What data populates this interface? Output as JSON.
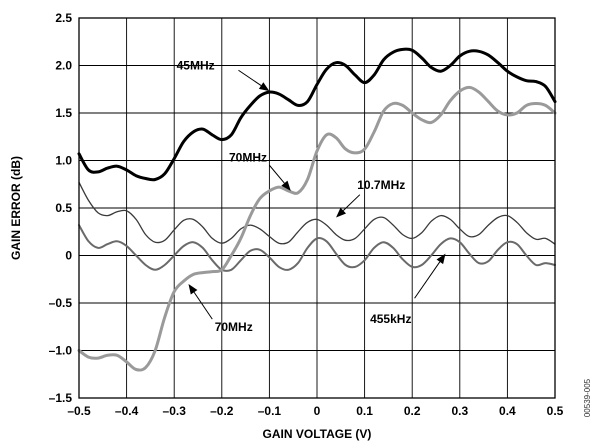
{
  "chart_data": {
    "type": "line",
    "xlabel": "GAIN VOLTAGE (V)",
    "ylabel": "GAIN ERROR (dB)",
    "xlim": [
      -0.5,
      0.5
    ],
    "ylim": [
      -1.5,
      2.5
    ],
    "xticks": [
      -0.5,
      -0.4,
      -0.3,
      -0.2,
      -0.1,
      0,
      0.1,
      0.2,
      0.3,
      0.4,
      0.5
    ],
    "yticks": [
      -1.5,
      -1.0,
      -0.5,
      0,
      0.5,
      1.0,
      1.5,
      2.0,
      2.5
    ],
    "xtick_labels": [
      "–0.5",
      "–0.4",
      "–0.3",
      "–0.2",
      "–0.1",
      "0",
      "0.1",
      "0.2",
      "0.3",
      "0.4",
      "0.5"
    ],
    "ytick_labels": [
      "–1.5",
      "–1.0",
      "–0.5",
      "0",
      "0.5",
      "1.0",
      "1.5",
      "2.0",
      "2.5"
    ],
    "grid": true,
    "figure_id": "00539-005",
    "series": [
      {
        "name": "45MHz",
        "color": "#000000",
        "width": 3,
        "points": [
          [
            -0.5,
            1.07
          ],
          [
            -0.48,
            0.9
          ],
          [
            -0.46,
            0.88
          ],
          [
            -0.44,
            0.92
          ],
          [
            -0.42,
            0.94
          ],
          [
            -0.4,
            0.9
          ],
          [
            -0.38,
            0.84
          ],
          [
            -0.36,
            0.81
          ],
          [
            -0.34,
            0.8
          ],
          [
            -0.32,
            0.86
          ],
          [
            -0.3,
            1.02
          ],
          [
            -0.28,
            1.2
          ],
          [
            -0.26,
            1.3
          ],
          [
            -0.24,
            1.33
          ],
          [
            -0.22,
            1.27
          ],
          [
            -0.2,
            1.22
          ],
          [
            -0.18,
            1.27
          ],
          [
            -0.16,
            1.45
          ],
          [
            -0.14,
            1.58
          ],
          [
            -0.12,
            1.68
          ],
          [
            -0.1,
            1.72
          ],
          [
            -0.08,
            1.7
          ],
          [
            -0.06,
            1.64
          ],
          [
            -0.04,
            1.58
          ],
          [
            -0.02,
            1.62
          ],
          [
            0,
            1.8
          ],
          [
            0.02,
            1.96
          ],
          [
            0.04,
            2.03
          ],
          [
            0.06,
            2.0
          ],
          [
            0.08,
            1.9
          ],
          [
            0.1,
            1.82
          ],
          [
            0.12,
            1.9
          ],
          [
            0.14,
            2.06
          ],
          [
            0.16,
            2.14
          ],
          [
            0.18,
            2.17
          ],
          [
            0.2,
            2.16
          ],
          [
            0.22,
            2.08
          ],
          [
            0.24,
            1.98
          ],
          [
            0.26,
            1.94
          ],
          [
            0.28,
            2.0
          ],
          [
            0.3,
            2.1
          ],
          [
            0.32,
            2.15
          ],
          [
            0.34,
            2.15
          ],
          [
            0.36,
            2.11
          ],
          [
            0.38,
            2.03
          ],
          [
            0.4,
            1.94
          ],
          [
            0.42,
            1.88
          ],
          [
            0.44,
            1.84
          ],
          [
            0.46,
            1.83
          ],
          [
            0.48,
            1.78
          ],
          [
            0.5,
            1.62
          ]
        ]
      },
      {
        "name": "70MHz",
        "color": "#9a9a9a",
        "width": 3,
        "points": [
          [
            -0.5,
            -1.0
          ],
          [
            -0.48,
            -1.07
          ],
          [
            -0.46,
            -1.08
          ],
          [
            -0.44,
            -1.05
          ],
          [
            -0.42,
            -1.05
          ],
          [
            -0.4,
            -1.12
          ],
          [
            -0.38,
            -1.2
          ],
          [
            -0.36,
            -1.18
          ],
          [
            -0.34,
            -1.0
          ],
          [
            -0.32,
            -0.65
          ],
          [
            -0.3,
            -0.38
          ],
          [
            -0.28,
            -0.27
          ],
          [
            -0.26,
            -0.2
          ],
          [
            -0.24,
            -0.18
          ],
          [
            -0.22,
            -0.17
          ],
          [
            -0.2,
            -0.15
          ],
          [
            -0.18,
            0.0
          ],
          [
            -0.16,
            0.18
          ],
          [
            -0.14,
            0.42
          ],
          [
            -0.12,
            0.6
          ],
          [
            -0.1,
            0.68
          ],
          [
            -0.08,
            0.72
          ],
          [
            -0.06,
            0.68
          ],
          [
            -0.04,
            0.66
          ],
          [
            -0.02,
            0.8
          ],
          [
            0,
            1.1
          ],
          [
            0.02,
            1.27
          ],
          [
            0.04,
            1.24
          ],
          [
            0.06,
            1.12
          ],
          [
            0.08,
            1.08
          ],
          [
            0.1,
            1.12
          ],
          [
            0.12,
            1.3
          ],
          [
            0.14,
            1.52
          ],
          [
            0.16,
            1.6
          ],
          [
            0.18,
            1.58
          ],
          [
            0.2,
            1.5
          ],
          [
            0.22,
            1.43
          ],
          [
            0.24,
            1.4
          ],
          [
            0.26,
            1.48
          ],
          [
            0.28,
            1.63
          ],
          [
            0.3,
            1.73
          ],
          [
            0.32,
            1.77
          ],
          [
            0.34,
            1.72
          ],
          [
            0.36,
            1.62
          ],
          [
            0.38,
            1.52
          ],
          [
            0.4,
            1.48
          ],
          [
            0.42,
            1.5
          ],
          [
            0.44,
            1.58
          ],
          [
            0.46,
            1.6
          ],
          [
            0.48,
            1.58
          ],
          [
            0.5,
            1.5
          ]
        ]
      },
      {
        "name": "10.7MHz",
        "color": "#3a3a3a",
        "width": 1.3,
        "points": [
          [
            -0.5,
            0.77
          ],
          [
            -0.48,
            0.58
          ],
          [
            -0.46,
            0.45
          ],
          [
            -0.44,
            0.42
          ],
          [
            -0.42,
            0.46
          ],
          [
            -0.4,
            0.47
          ],
          [
            -0.38,
            0.38
          ],
          [
            -0.36,
            0.22
          ],
          [
            -0.34,
            0.14
          ],
          [
            -0.32,
            0.16
          ],
          [
            -0.3,
            0.27
          ],
          [
            -0.28,
            0.37
          ],
          [
            -0.26,
            0.38
          ],
          [
            -0.24,
            0.3
          ],
          [
            -0.22,
            0.18
          ],
          [
            -0.2,
            0.13
          ],
          [
            -0.18,
            0.18
          ],
          [
            -0.16,
            0.28
          ],
          [
            -0.14,
            0.32
          ],
          [
            -0.12,
            0.28
          ],
          [
            -0.1,
            0.2
          ],
          [
            -0.08,
            0.13
          ],
          [
            -0.06,
            0.14
          ],
          [
            -0.04,
            0.25
          ],
          [
            -0.02,
            0.35
          ],
          [
            0,
            0.38
          ],
          [
            0.02,
            0.32
          ],
          [
            0.04,
            0.22
          ],
          [
            0.06,
            0.16
          ],
          [
            0.08,
            0.18
          ],
          [
            0.1,
            0.28
          ],
          [
            0.12,
            0.38
          ],
          [
            0.14,
            0.4
          ],
          [
            0.16,
            0.32
          ],
          [
            0.18,
            0.22
          ],
          [
            0.2,
            0.18
          ],
          [
            0.22,
            0.24
          ],
          [
            0.24,
            0.36
          ],
          [
            0.26,
            0.42
          ],
          [
            0.28,
            0.38
          ],
          [
            0.3,
            0.28
          ],
          [
            0.32,
            0.2
          ],
          [
            0.34,
            0.22
          ],
          [
            0.36,
            0.32
          ],
          [
            0.38,
            0.4
          ],
          [
            0.4,
            0.42
          ],
          [
            0.42,
            0.35
          ],
          [
            0.44,
            0.24
          ],
          [
            0.46,
            0.17
          ],
          [
            0.48,
            0.18
          ],
          [
            0.5,
            0.12
          ]
        ]
      },
      {
        "name": "455kHz",
        "color": "#6a6a6a",
        "width": 2,
        "points": [
          [
            -0.5,
            0.32
          ],
          [
            -0.48,
            0.15
          ],
          [
            -0.46,
            0.08
          ],
          [
            -0.44,
            0.12
          ],
          [
            -0.42,
            0.15
          ],
          [
            -0.4,
            0.1
          ],
          [
            -0.38,
            0.0
          ],
          [
            -0.36,
            -0.1
          ],
          [
            -0.34,
            -0.15
          ],
          [
            -0.32,
            -0.1
          ],
          [
            -0.3,
            0.0
          ],
          [
            -0.28,
            0.1
          ],
          [
            -0.26,
            0.14
          ],
          [
            -0.24,
            0.08
          ],
          [
            -0.22,
            -0.05
          ],
          [
            -0.2,
            -0.15
          ],
          [
            -0.18,
            -0.15
          ],
          [
            -0.16,
            -0.05
          ],
          [
            -0.14,
            0.05
          ],
          [
            -0.12,
            0.06
          ],
          [
            -0.1,
            -0.02
          ],
          [
            -0.08,
            -0.12
          ],
          [
            -0.06,
            -0.15
          ],
          [
            -0.04,
            -0.08
          ],
          [
            -0.02,
            0.08
          ],
          [
            0,
            0.18
          ],
          [
            0.02,
            0.15
          ],
          [
            0.04,
            0.02
          ],
          [
            0.06,
            -0.1
          ],
          [
            0.08,
            -0.12
          ],
          [
            0.1,
            -0.05
          ],
          [
            0.12,
            0.08
          ],
          [
            0.14,
            0.14
          ],
          [
            0.16,
            0.08
          ],
          [
            0.18,
            -0.04
          ],
          [
            0.2,
            -0.12
          ],
          [
            0.22,
            -0.1
          ],
          [
            0.24,
            0.0
          ],
          [
            0.26,
            0.12
          ],
          [
            0.28,
            0.18
          ],
          [
            0.3,
            0.14
          ],
          [
            0.32,
            0.02
          ],
          [
            0.34,
            -0.08
          ],
          [
            0.36,
            -0.06
          ],
          [
            0.38,
            0.06
          ],
          [
            0.4,
            0.14
          ],
          [
            0.42,
            0.12
          ],
          [
            0.44,
            0.0
          ],
          [
            0.46,
            -0.1
          ],
          [
            0.48,
            -0.08
          ],
          [
            0.5,
            -0.1
          ]
        ]
      }
    ],
    "annotations": [
      {
        "text": "45MHz",
        "x": -0.255,
        "y": 2.0,
        "tip": [
          -0.1,
          1.73
        ],
        "tail": [
          -0.165,
          1.95
        ]
      },
      {
        "text": "70MHz",
        "x": -0.145,
        "y": 1.03,
        "tip": [
          -0.055,
          0.68
        ],
        "tail": [
          -0.1,
          0.95
        ]
      },
      {
        "text": "10.7MHz",
        "x": 0.135,
        "y": 0.74,
        "tip": [
          0.04,
          0.4
        ],
        "tail": [
          0.09,
          0.64
        ]
      },
      {
        "text": "455kHz",
        "x": 0.155,
        "y": -0.67,
        "tip": [
          0.27,
          0.02
        ],
        "tail": [
          0.205,
          -0.45
        ]
      },
      {
        "text": "70MHz",
        "x": -0.175,
        "y": -0.75,
        "tip": [
          -0.27,
          -0.3
        ],
        "tail": [
          -0.22,
          -0.67
        ]
      }
    ]
  }
}
